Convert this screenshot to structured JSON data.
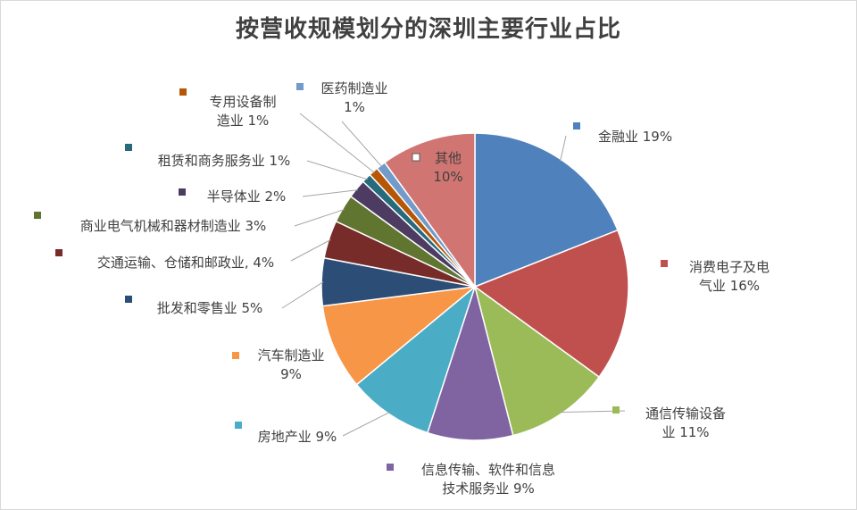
{
  "chart_data": {
    "type": "pie",
    "title": "按营收规模划分的深圳主要行业占比",
    "slices": [
      {
        "label": [
          "金融业 19%"
        ],
        "value": 19,
        "color": "#4F81BD",
        "legend_color": "#4F81BD"
      },
      {
        "label": [
          "消费电子及电",
          "气业 16%"
        ],
        "value": 16,
        "color": "#C0504D",
        "legend_color": "#C0504D"
      },
      {
        "label": [
          "通信传输设备",
          "业 11%"
        ],
        "value": 11,
        "color": "#9BBB59",
        "legend_color": "#9BBB59"
      },
      {
        "label": [
          "信息传输、软件和信息",
          "技术服务业 9%"
        ],
        "value": 9,
        "color": "#8064A2",
        "legend_color": "#8064A2"
      },
      {
        "label": [
          "房地产业 9%"
        ],
        "value": 9,
        "color": "#4BACC6",
        "legend_color": "#4BACC6"
      },
      {
        "label": [
          "汽车制造业",
          "9%"
        ],
        "value": 9,
        "color": "#F79646",
        "legend_color": "#F79646"
      },
      {
        "label": [
          "批发和零售业 5%"
        ],
        "value": 5,
        "color": "#2C4D75",
        "legend_color": "#2C4D75"
      },
      {
        "label": [
          "交通运输、仓储和邮政业, 4%"
        ],
        "value": 4,
        "color": "#772C2A",
        "legend_color": "#772C2A"
      },
      {
        "label": [
          "商业电气机械和器材制造业 3%"
        ],
        "value": 3,
        "color": "#5F7530",
        "legend_color": "#5F7530"
      },
      {
        "label": [
          "半导体业 2%"
        ],
        "value": 2,
        "color": "#4D3B62",
        "legend_color": "#4D3B62"
      },
      {
        "label": [
          "租赁和商务服务业 1%"
        ],
        "value": 1,
        "color": "#276A7C",
        "legend_color": "#276A7C"
      },
      {
        "label": [
          "专用设备制",
          "造业 1%"
        ],
        "value": 1,
        "color": "#B65708",
        "legend_color": "#B65708"
      },
      {
        "label": [
          "医药制造业",
          "1%"
        ],
        "value": 1,
        "color": "#729ACA",
        "legend_color": "#729ACA"
      },
      {
        "label": [
          "其他",
          "10%"
        ],
        "value": 10,
        "color": "#D07572",
        "legend_color": "#FFFFFF"
      }
    ]
  }
}
